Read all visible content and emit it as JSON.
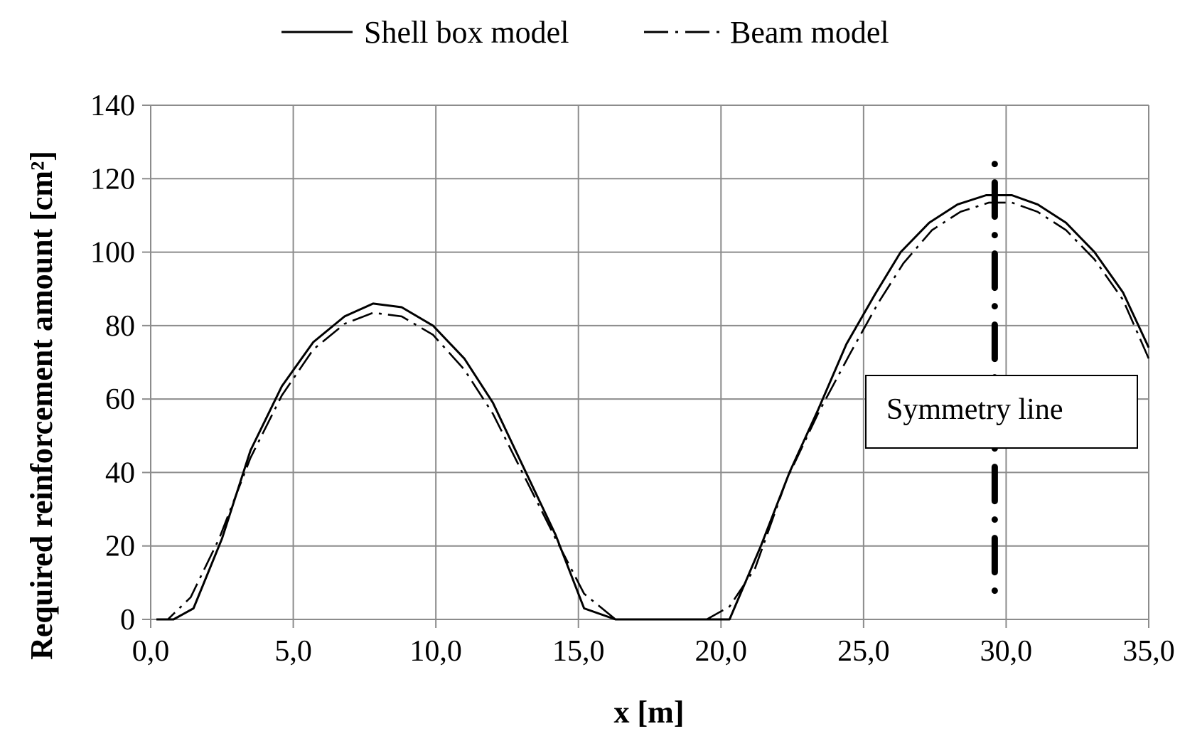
{
  "chart_data": {
    "type": "line",
    "title": "",
    "xlabel": "x [m]",
    "ylabel": "Required reinforcement amount [cm²]",
    "xlim": [
      0,
      35
    ],
    "ylim": [
      0,
      140
    ],
    "x_ticks": [
      "0,0",
      "5,0",
      "10,0",
      "15,0",
      "20,0",
      "25,0",
      "30,0",
      "35,0"
    ],
    "x_tick_values": [
      0,
      5,
      10,
      15,
      20,
      25,
      30,
      35
    ],
    "y_ticks": [
      "0",
      "20",
      "40",
      "60",
      "80",
      "100",
      "120",
      "140"
    ],
    "y_tick_values": [
      0,
      20,
      40,
      60,
      80,
      100,
      120,
      140
    ],
    "grid": true,
    "legend_position": "top-center",
    "series": [
      {
        "name": "Shell box model",
        "style": "solid",
        "color": "#000000",
        "points": [
          [
            0.2,
            0
          ],
          [
            0.8,
            0
          ],
          [
            1.5,
            3
          ],
          [
            2.5,
            22
          ],
          [
            3.5,
            46
          ],
          [
            4.6,
            63.5
          ],
          [
            5.7,
            75.5
          ],
          [
            6.8,
            82.5
          ],
          [
            7.8,
            86
          ],
          [
            8.8,
            85
          ],
          [
            9.9,
            80
          ],
          [
            11.0,
            71
          ],
          [
            12.0,
            59
          ],
          [
            13.1,
            41
          ],
          [
            14.2,
            23
          ],
          [
            15.2,
            3
          ],
          [
            16.3,
            0
          ],
          [
            17.4,
            0
          ],
          [
            18.5,
            0
          ],
          [
            19.5,
            0
          ],
          [
            20.3,
            0
          ],
          [
            21.4,
            20
          ],
          [
            22.4,
            40
          ],
          [
            23.4,
            57
          ],
          [
            24.4,
            75
          ],
          [
            25.4,
            88.5
          ],
          [
            26.3,
            100
          ],
          [
            27.3,
            108
          ],
          [
            28.3,
            113
          ],
          [
            29.3,
            115.5
          ],
          [
            30.2,
            115.5
          ],
          [
            31.1,
            113
          ],
          [
            32.1,
            108
          ],
          [
            33.1,
            100
          ],
          [
            34.1,
            89
          ],
          [
            35.0,
            74
          ]
        ]
      },
      {
        "name": "Beam model",
        "style": "dash-dot",
        "color": "#000000",
        "points": [
          [
            0.2,
            0
          ],
          [
            0.6,
            0
          ],
          [
            1.4,
            6
          ],
          [
            2.4,
            22
          ],
          [
            3.5,
            44
          ],
          [
            4.6,
            61
          ],
          [
            5.7,
            73.5
          ],
          [
            6.8,
            80.5
          ],
          [
            7.8,
            83.5
          ],
          [
            8.8,
            82.5
          ],
          [
            9.9,
            77.5
          ],
          [
            11.0,
            68
          ],
          [
            12.0,
            56
          ],
          [
            13.1,
            39
          ],
          [
            14.2,
            22
          ],
          [
            15.2,
            7
          ],
          [
            16.3,
            0
          ],
          [
            17.4,
            0
          ],
          [
            18.5,
            0
          ],
          [
            19.5,
            0
          ],
          [
            20.3,
            3.5
          ],
          [
            21.2,
            14
          ],
          [
            22.3,
            38
          ],
          [
            23.4,
            56
          ],
          [
            24.5,
            72
          ],
          [
            25.5,
            86
          ],
          [
            26.4,
            97
          ],
          [
            27.4,
            106
          ],
          [
            28.4,
            111
          ],
          [
            29.4,
            113.5
          ],
          [
            30.2,
            113.5
          ],
          [
            31.1,
            111
          ],
          [
            32.1,
            106
          ],
          [
            33.1,
            98
          ],
          [
            34.1,
            87
          ],
          [
            35.0,
            71
          ]
        ]
      }
    ],
    "annotations": [
      {
        "text": "Symmetry line",
        "x": 29.6,
        "style": "dash-dot vertical"
      }
    ]
  }
}
